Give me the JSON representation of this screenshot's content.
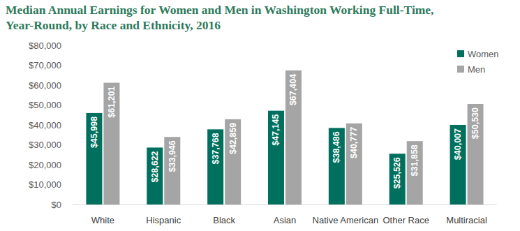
{
  "chart_data": {
    "type": "bar",
    "title": "Median Annual Earnings for Women and Men in Washington Working Full-Time, Year-Round, by Race and Ethnicity, 2016",
    "categories": [
      "White",
      "Hispanic",
      "Black",
      "Asian",
      "Native American",
      "Other Race",
      "Multiracial"
    ],
    "series": [
      {
        "name": "Women",
        "color": "#00705e",
        "values": [
          45998,
          28622,
          37768,
          47145,
          38486,
          25526,
          40007
        ],
        "value_labels": [
          "$45,998",
          "$28,622",
          "$37,768",
          "$47,145",
          "$38,486",
          "$25,526",
          "$40,007"
        ]
      },
      {
        "name": "Men",
        "color": "#a5a5a5",
        "values": [
          61201,
          33946,
          42859,
          67404,
          40777,
          31858,
          50530
        ],
        "value_labels": [
          "$61,201",
          "$33,946",
          "$42,859",
          "$67,404",
          "$40,777",
          "$31,858",
          "$50,530"
        ]
      }
    ],
    "ylim": [
      0,
      80000
    ],
    "yticks": [
      {
        "value": 0,
        "label": "$0"
      },
      {
        "value": 10000,
        "label": "$10,000"
      },
      {
        "value": 20000,
        "label": "$20,000"
      },
      {
        "value": 30000,
        "label": "$30,000"
      },
      {
        "value": 40000,
        "label": "$40,000"
      },
      {
        "value": 50000,
        "label": "$50,000"
      },
      {
        "value": 60000,
        "label": "$60,000"
      },
      {
        "value": 70000,
        "label": "$70,000"
      },
      {
        "value": 80000,
        "label": "$80,000"
      }
    ],
    "grid": false,
    "legend": "upper right",
    "data_labels": true
  }
}
